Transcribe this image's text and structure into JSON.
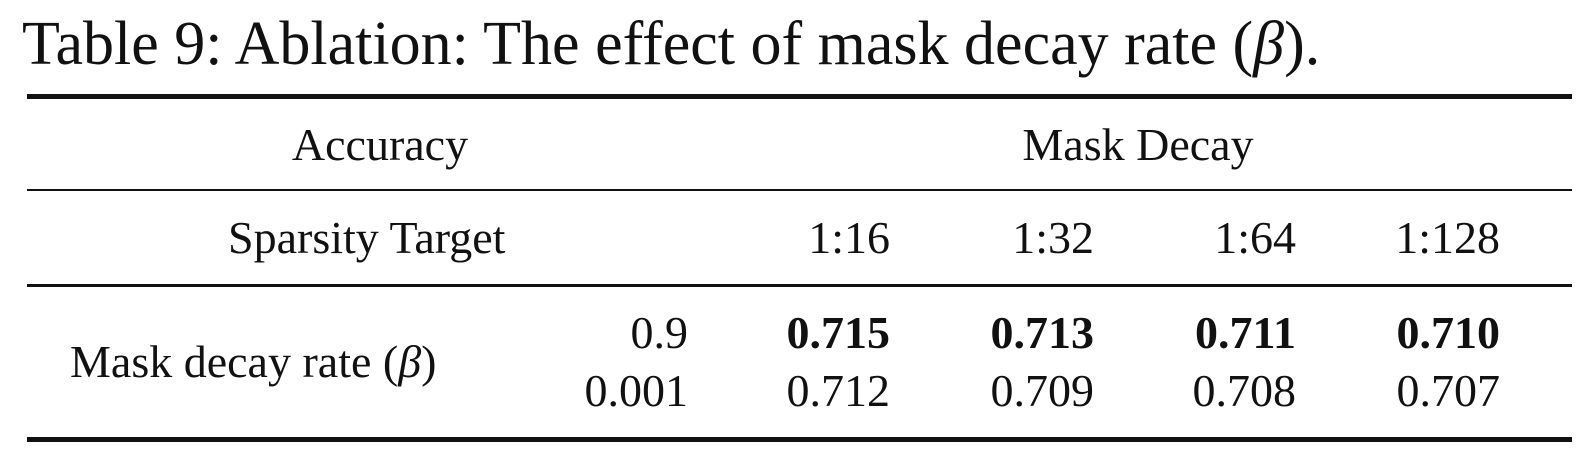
{
  "caption": {
    "prefix": "Table 9: Ablation: The effect of mask decay rate (",
    "symbol": "β",
    "suffix": ")."
  },
  "header": {
    "group_left": "Accuracy",
    "group_right": "Mask Decay",
    "row_label": "Sparsity Target",
    "columns": [
      "1:16",
      "1:32",
      "1:64",
      "1:128"
    ]
  },
  "body": {
    "row_label_prefix": "Mask decay rate (",
    "row_label_symbol": "β",
    "row_label_suffix": ")",
    "rows": [
      {
        "beta": "0.9",
        "values": [
          "0.715",
          "0.713",
          "0.711",
          "0.710"
        ],
        "bold": true
      },
      {
        "beta": "0.001",
        "values": [
          "0.712",
          "0.709",
          "0.708",
          "0.707"
        ],
        "bold": false
      }
    ]
  }
}
